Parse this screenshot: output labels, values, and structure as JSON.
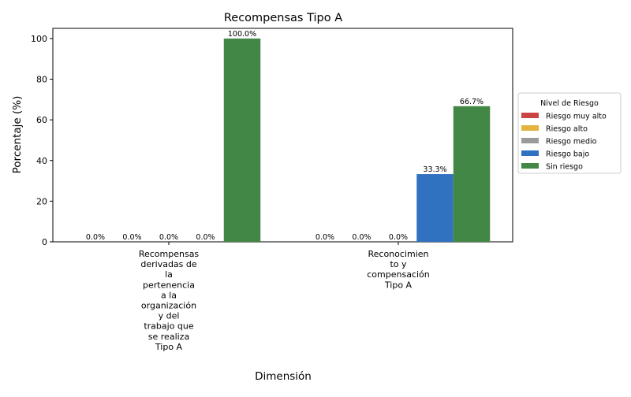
{
  "chart_data": {
    "type": "bar",
    "title": "Recompensas Tipo A",
    "xlabel": "Dimensión",
    "ylabel": "Porcentaje (%)",
    "ylim": [
      0,
      105
    ],
    "yticks": [
      "0",
      "20",
      "40",
      "60",
      "80",
      "100"
    ],
    "categories": [
      [
        "Recompensas",
        "derivadas de",
        "la",
        "pertenencia",
        "a la",
        "organización",
        "y del",
        "trabajo que",
        "se realiza",
        "Tipo A"
      ],
      [
        "Reconocimien",
        "to y",
        "compensación",
        "Tipo A"
      ]
    ],
    "series": [
      {
        "name": "Riesgo muy alto",
        "color": "#c94443",
        "values": [
          0,
          0
        ],
        "labels": [
          "0.0%",
          "0.0%"
        ]
      },
      {
        "name": "Riesgo alto",
        "color": "#e3b33e",
        "values": [
          0,
          0
        ],
        "labels": [
          "0.0%",
          "0.0%"
        ]
      },
      {
        "name": "Riesgo medio",
        "color": "#9a9a9a",
        "values": [
          0,
          0
        ],
        "labels": [
          "0.0%",
          "0.0%"
        ]
      },
      {
        "name": "Riesgo bajo",
        "color": "#3072bf",
        "values": [
          0,
          33.3
        ],
        "labels": [
          "0.0%",
          "33.3%"
        ]
      },
      {
        "name": "Sin riesgo",
        "color": "#428745",
        "values": [
          100,
          66.7
        ],
        "labels": [
          "100.0%",
          "66.7%"
        ]
      }
    ],
    "legend": {
      "title": "Nivel de Riesgo",
      "position": "right"
    },
    "grid": false
  }
}
